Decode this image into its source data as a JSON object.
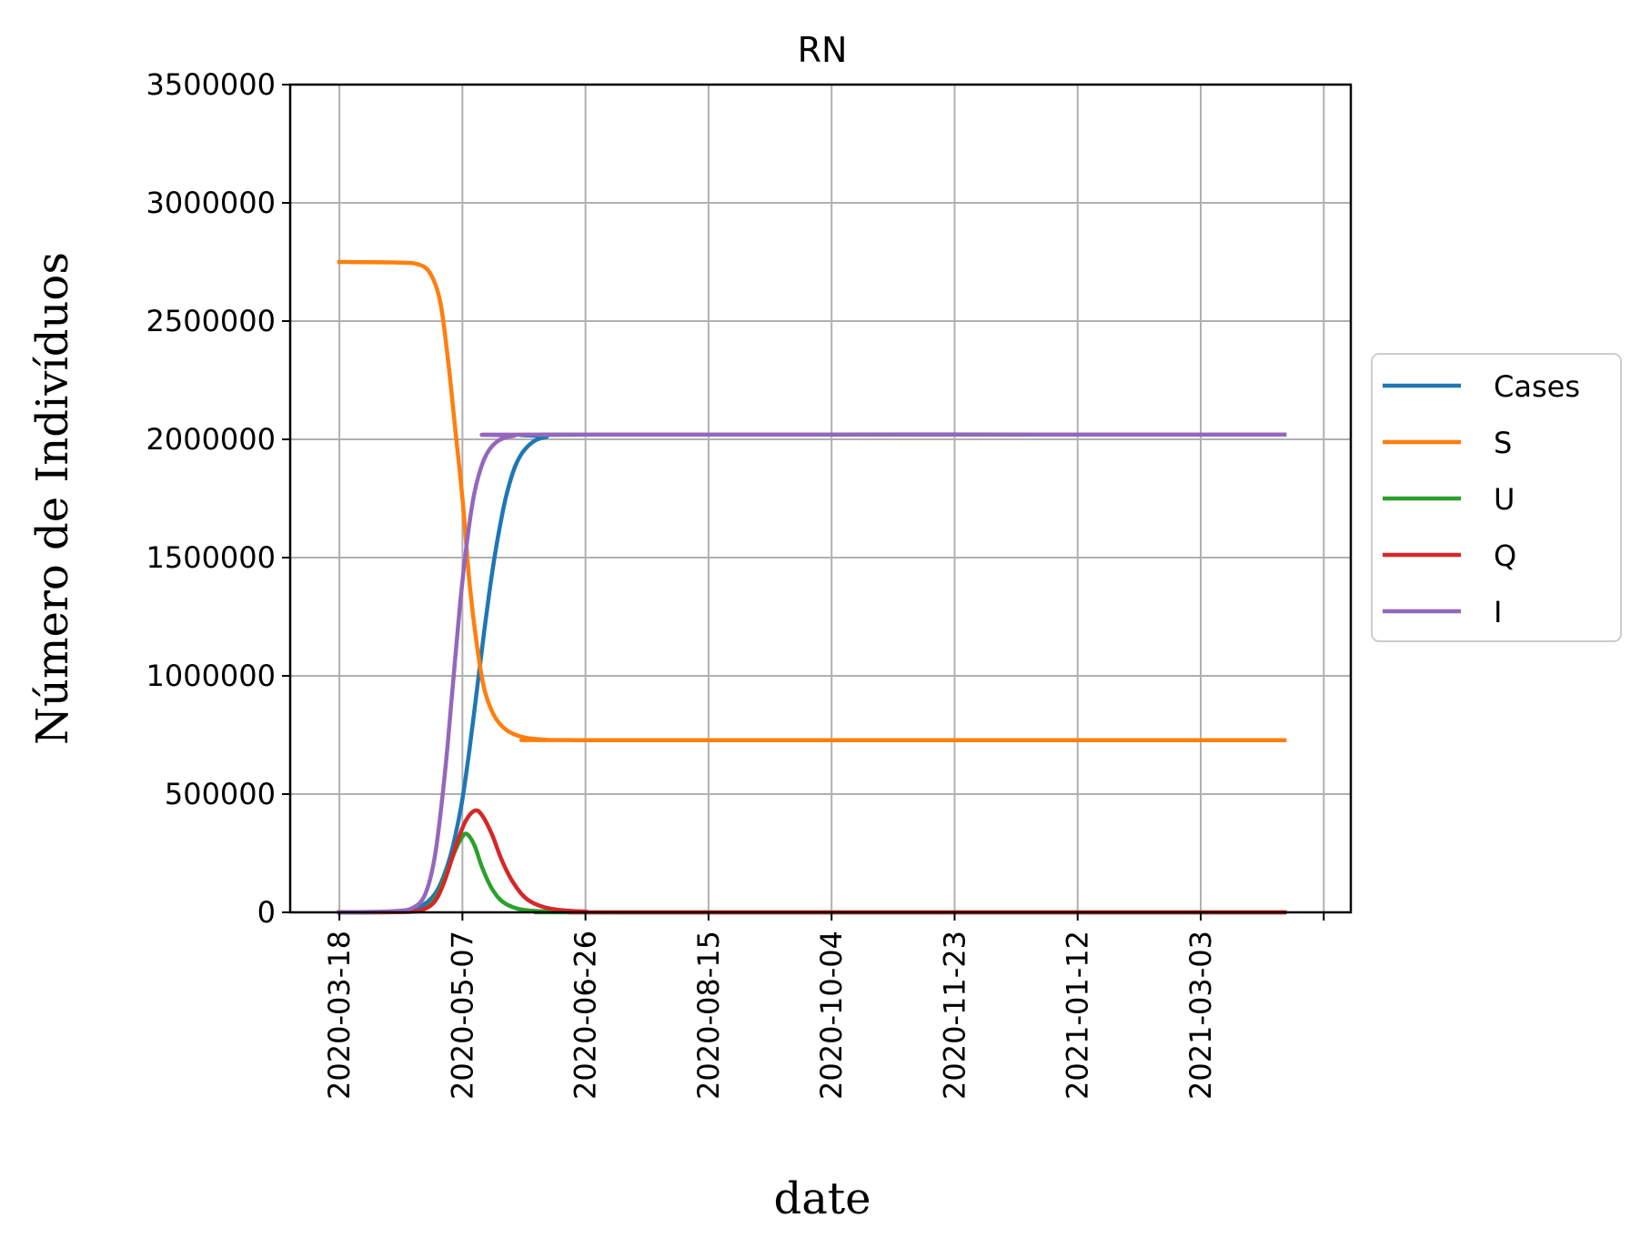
{
  "chart_data": {
    "type": "line",
    "title": "RN",
    "xlabel": "date",
    "ylabel": "Número de Indivíduos",
    "x_ticks": [
      "2020-03-18",
      "2020-05-07",
      "2020-06-26",
      "2020-08-15",
      "2020-10-04",
      "2020-11-23",
      "2021-01-12",
      "2021-03-03"
    ],
    "y_ticks": [
      "0",
      "500000",
      "1000000",
      "1500000",
      "2000000",
      "2500000",
      "3000000",
      "3500000"
    ],
    "xlim": [
      "2020-02-27",
      "2021-05-03"
    ],
    "ylim": [
      0,
      3500000
    ],
    "grid": true,
    "legend_position": "center-right-outside",
    "series": [
      {
        "name": "Cases",
        "color": "#1f77b4",
        "points": [
          [
            "2020-03-18",
            0
          ],
          [
            "2020-04-09",
            3000
          ],
          [
            "2020-04-19",
            20000
          ],
          [
            "2020-04-26",
            80000
          ],
          [
            "2020-05-01",
            200000
          ],
          [
            "2020-05-04",
            320000
          ],
          [
            "2020-05-07",
            480000
          ],
          [
            "2020-05-10",
            700000
          ],
          [
            "2020-05-13",
            950000
          ],
          [
            "2020-05-16",
            1200000
          ],
          [
            "2020-05-19",
            1430000
          ],
          [
            "2020-05-22",
            1620000
          ],
          [
            "2020-05-25",
            1770000
          ],
          [
            "2020-05-29",
            1900000
          ],
          [
            "2020-06-03",
            1975000
          ],
          [
            "2020-06-10",
            2010000
          ],
          [
            "2020-06-26",
            2020000
          ],
          [
            "2021-04-06",
            2020000
          ]
        ]
      },
      {
        "name": "S",
        "color": "#ff7f0e",
        "points": [
          [
            "2020-03-18",
            2750000
          ],
          [
            "2020-04-09",
            2748000
          ],
          [
            "2020-04-19",
            2740000
          ],
          [
            "2020-04-24",
            2700000
          ],
          [
            "2020-04-28",
            2580000
          ],
          [
            "2020-05-01",
            2350000
          ],
          [
            "2020-05-04",
            2050000
          ],
          [
            "2020-05-07",
            1750000
          ],
          [
            "2020-05-10",
            1380000
          ],
          [
            "2020-05-13",
            1120000
          ],
          [
            "2020-05-16",
            940000
          ],
          [
            "2020-05-20",
            830000
          ],
          [
            "2020-05-25",
            770000
          ],
          [
            "2020-06-01",
            740000
          ],
          [
            "2020-06-10",
            730000
          ],
          [
            "2020-06-26",
            728000
          ],
          [
            "2021-04-06",
            728000
          ]
        ]
      },
      {
        "name": "U",
        "color": "#2ca02c",
        "points": [
          [
            "2020-03-18",
            0
          ],
          [
            "2020-04-14",
            2000
          ],
          [
            "2020-04-21",
            12000
          ],
          [
            "2020-04-26",
            60000
          ],
          [
            "2020-04-30",
            150000
          ],
          [
            "2020-05-04",
            260000
          ],
          [
            "2020-05-07",
            320000
          ],
          [
            "2020-05-09",
            330000
          ],
          [
            "2020-05-12",
            280000
          ],
          [
            "2020-05-15",
            190000
          ],
          [
            "2020-05-19",
            100000
          ],
          [
            "2020-05-24",
            40000
          ],
          [
            "2020-06-01",
            10000
          ],
          [
            "2020-06-15",
            2000
          ],
          [
            "2020-07-01",
            0
          ],
          [
            "2021-04-06",
            0
          ]
        ]
      },
      {
        "name": "Q",
        "color": "#d62728",
        "points": [
          [
            "2020-03-18",
            0
          ],
          [
            "2020-04-14",
            2000
          ],
          [
            "2020-04-21",
            12000
          ],
          [
            "2020-04-26",
            50000
          ],
          [
            "2020-04-30",
            140000
          ],
          [
            "2020-05-04",
            270000
          ],
          [
            "2020-05-08",
            380000
          ],
          [
            "2020-05-12",
            430000
          ],
          [
            "2020-05-15",
            410000
          ],
          [
            "2020-05-19",
            330000
          ],
          [
            "2020-05-23",
            220000
          ],
          [
            "2020-05-28",
            120000
          ],
          [
            "2020-06-03",
            50000
          ],
          [
            "2020-06-12",
            15000
          ],
          [
            "2020-06-26",
            3000
          ],
          [
            "2020-07-15",
            0
          ],
          [
            "2021-04-06",
            0
          ]
        ]
      },
      {
        "name": "I",
        "color": "#9467bd",
        "points": [
          [
            "2020-03-18",
            0
          ],
          [
            "2020-04-09",
            5000
          ],
          [
            "2020-04-17",
            20000
          ],
          [
            "2020-04-22",
            80000
          ],
          [
            "2020-04-26",
            250000
          ],
          [
            "2020-04-30",
            600000
          ],
          [
            "2020-05-03",
            950000
          ],
          [
            "2020-05-06",
            1300000
          ],
          [
            "2020-05-09",
            1580000
          ],
          [
            "2020-05-12",
            1780000
          ],
          [
            "2020-05-16",
            1920000
          ],
          [
            "2020-05-21",
            1990000
          ],
          [
            "2020-05-28",
            2015000
          ],
          [
            "2020-06-10",
            2020000
          ],
          [
            "2021-04-06",
            2020000
          ]
        ]
      }
    ]
  }
}
